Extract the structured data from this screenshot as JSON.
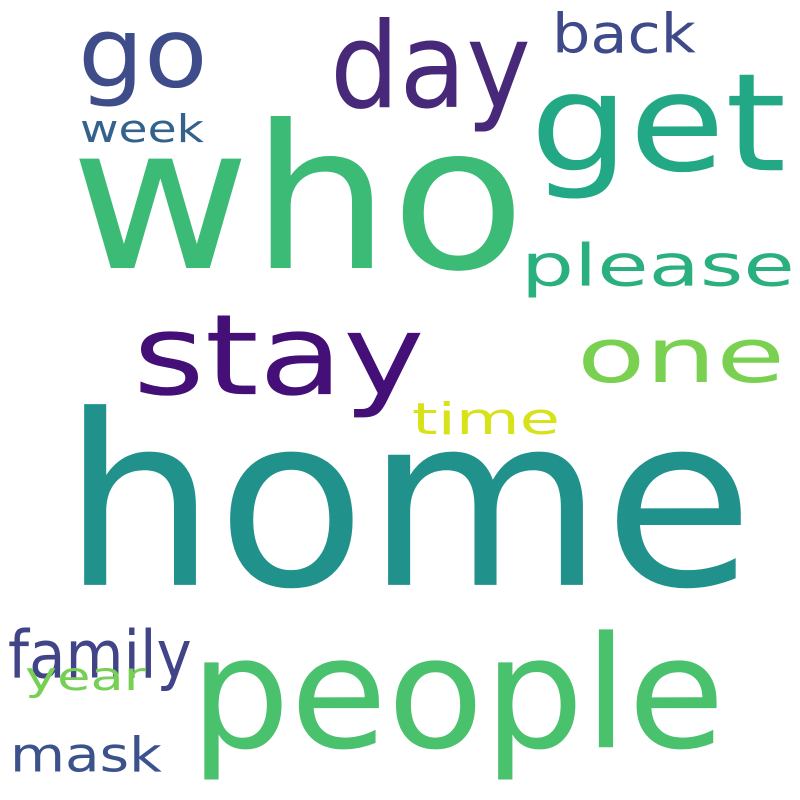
{
  "words": [
    {
      "text": "home",
      "color": "#21918c"
    },
    {
      "text": "who",
      "color": "#3bbb75"
    },
    {
      "text": "people",
      "color": "#4ac16d"
    },
    {
      "text": "stay",
      "color": "#440f76"
    },
    {
      "text": "get",
      "color": "#22a884"
    },
    {
      "text": "one",
      "color": "#7ad151"
    },
    {
      "text": "day",
      "color": "#482878"
    },
    {
      "text": "go",
      "color": "#3e4c8a"
    },
    {
      "text": "please",
      "color": "#2ab07f"
    },
    {
      "text": "back",
      "color": "#3e4a89"
    },
    {
      "text": "time",
      "color": "#d8e219"
    },
    {
      "text": "week",
      "color": "#33638d"
    },
    {
      "text": "family",
      "color": "#414487"
    },
    {
      "text": "mask",
      "color": "#3b528b"
    },
    {
      "text": "year",
      "color": "#75d054"
    }
  ]
}
